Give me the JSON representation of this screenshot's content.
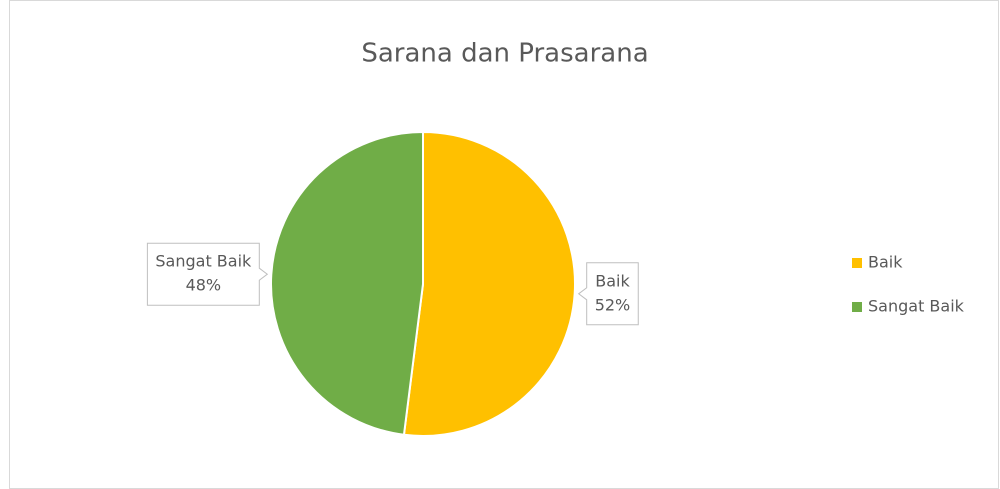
{
  "chart_data": {
    "type": "pie",
    "title": "Sarana dan Prasarana",
    "categories": [
      "Baik",
      "Sangat Baik"
    ],
    "values": [
      52,
      48
    ],
    "value_labels": [
      "52%",
      "48%"
    ],
    "colors": [
      "#FFC000",
      "#70AD47"
    ],
    "legend": "right"
  }
}
